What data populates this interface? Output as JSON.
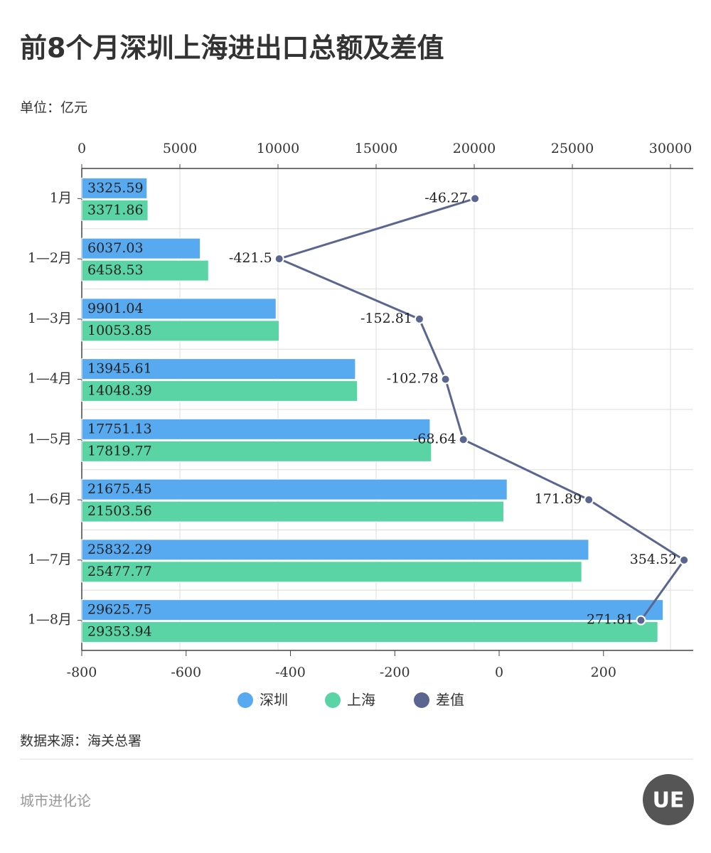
{
  "header": {
    "title": "前8个月深圳上海进出口总额及差值",
    "unit": "单位：亿元"
  },
  "chart_data": {
    "type": "bar-line",
    "categories": [
      "1月",
      "1—2月",
      "1—3月",
      "1—4月",
      "1—5月",
      "1—6月",
      "1—7月",
      "1—8月"
    ],
    "series": [
      {
        "name": "深圳",
        "color": "#58aaf0",
        "values": [
          3325.59,
          6037.03,
          9901.04,
          13945.61,
          17751.13,
          21675.45,
          25832.29,
          29625.75
        ]
      },
      {
        "name": "上海",
        "color": "#5ad3a5",
        "values": [
          3371.86,
          6458.53,
          10053.85,
          14048.39,
          17819.77,
          21503.56,
          25477.77,
          29353.94
        ]
      },
      {
        "name": "差值",
        "color": "#5a6690",
        "axis": "x2",
        "values": [
          -46.27,
          -421.5,
          -152.81,
          -102.78,
          -68.64,
          171.89,
          354.52,
          271.81
        ]
      }
    ],
    "xlim": [
      0,
      31160
    ],
    "xticks": [
      0,
      5000,
      10000,
      15000,
      20000,
      25000,
      30000
    ],
    "x2lim": [
      -800,
      372
    ],
    "x2ticks": [
      -800,
      -600,
      -400,
      -200,
      0,
      200
    ],
    "grid": true,
    "legend": "bottom"
  },
  "footer": {
    "source": "数据来源：海关总署",
    "brand": "城市进化论",
    "logo": "UE"
  }
}
